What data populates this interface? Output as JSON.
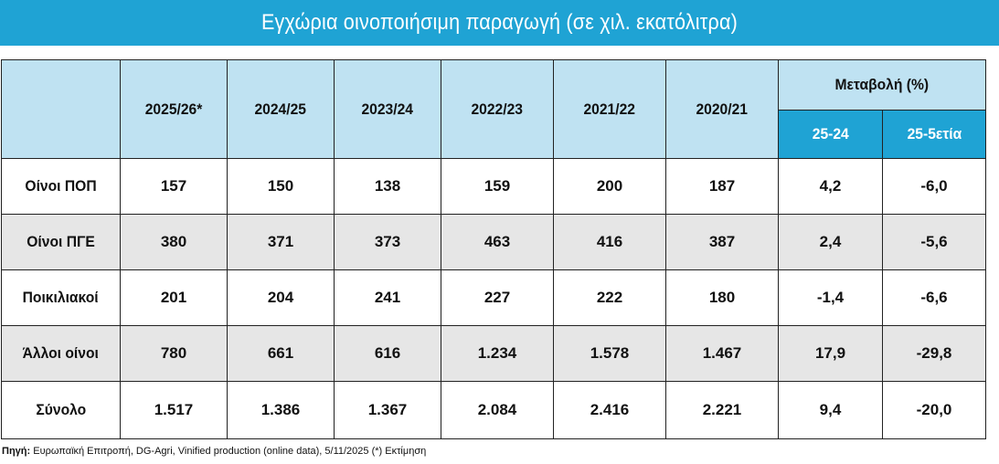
{
  "title": "Εγχώρια οινοποιήσιμη παραγωγή (σε χιλ. εκατόλιτρα)",
  "table": {
    "columns": [
      "2025/26*",
      "2024/25",
      "2023/24",
      "2022/23",
      "2021/22",
      "2020/21"
    ],
    "change_header": "Μεταβολή (%)",
    "change_columns": [
      "25-24",
      "25-5ετία"
    ],
    "rows": [
      {
        "label": "Οίνοι ΠΟΠ",
        "values": [
          "157",
          "150",
          "138",
          "159",
          "200",
          "187"
        ],
        "changes": [
          "4,2",
          "-6,0"
        ]
      },
      {
        "label": "Οίνοι ΠΓΕ",
        "values": [
          "380",
          "371",
          "373",
          "463",
          "416",
          "387"
        ],
        "changes": [
          "2,4",
          "-5,6"
        ]
      },
      {
        "label": "Ποικιλιακοί",
        "values": [
          "201",
          "204",
          "241",
          "227",
          "222",
          "180"
        ],
        "changes": [
          "-1,4",
          "-6,6"
        ]
      },
      {
        "label": "Άλλοι οίνοι",
        "values": [
          "780",
          "661",
          "616",
          "1.234",
          "1.578",
          "1.467"
        ],
        "changes": [
          "17,9",
          "-29,8"
        ]
      },
      {
        "label": "Σύνολο",
        "values": [
          "1.517",
          "1.386",
          "1.367",
          "2.084",
          "2.416",
          "2.221"
        ],
        "changes": [
          "9,4",
          "-20,0"
        ]
      }
    ]
  },
  "source": {
    "label": "Πηγή:",
    "text": " Ευρωπαϊκή Επιτροπή, DG-Agri, Vinified production (online data), 5/11/2025 (*) Εκτίμηση"
  },
  "colors": {
    "accent": "#1fa3d4",
    "header_light": "#bfe2f2",
    "row_shade": "#e6e6e6"
  }
}
